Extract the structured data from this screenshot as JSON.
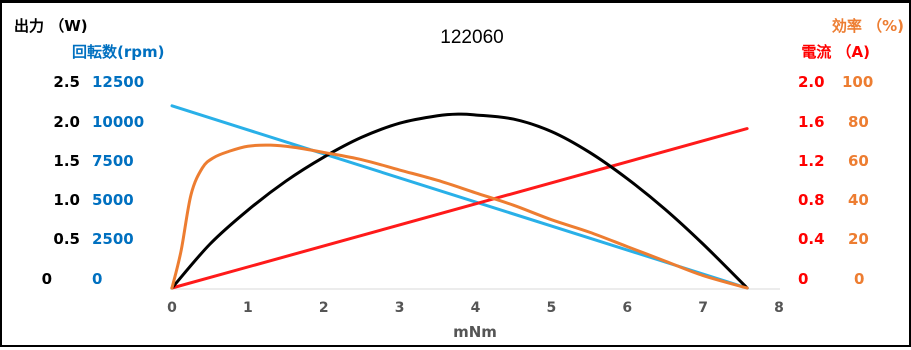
{
  "chart_data": {
    "type": "line",
    "title": "122060",
    "xlabel": "mNm",
    "x_ticks": [
      "0",
      "1",
      "2",
      "3",
      "4",
      "5",
      "6",
      "7",
      "8"
    ],
    "xlim": [
      0,
      8
    ],
    "axes": {
      "power": {
        "label": "出力 （W)",
        "ticks": [
          "0",
          "0.5",
          "1.0",
          "1.5",
          "2.0",
          "2.5"
        ],
        "range": [
          0,
          2.5
        ],
        "color": "#000000"
      },
      "speed": {
        "label": "回転数(rpm)",
        "ticks": [
          "0",
          "2500",
          "5000",
          "7500",
          "10000",
          "12500"
        ],
        "range": [
          0,
          12500
        ],
        "color": "#0070c0"
      },
      "current": {
        "label": "電流 （A)",
        "ticks": [
          "0",
          "0.4",
          "0.8",
          "1.2",
          "1.6",
          "2.0"
        ],
        "range": [
          0,
          2.0
        ],
        "color": "#ff0000"
      },
      "efficiency": {
        "label": "効率 （%)",
        "ticks": [
          "0",
          "20",
          "40",
          "60",
          "80",
          "100"
        ],
        "range": [
          0,
          100
        ],
        "color": "#ed7d31"
      }
    },
    "series": [
      {
        "key": "speed",
        "axis": "speed",
        "color": "#29b0e8",
        "x": [
          0,
          7.58
        ],
        "y": [
          11000,
          0
        ]
      },
      {
        "key": "current",
        "axis": "current",
        "color": "#ff1a1a",
        "x": [
          0,
          7.58
        ],
        "y": [
          0,
          1.54
        ]
      },
      {
        "key": "power",
        "axis": "power",
        "color": "#000000",
        "x": [
          0,
          0.5,
          1,
          1.5,
          2,
          2.5,
          3,
          3.5,
          3.79,
          4,
          4.5,
          5,
          5.5,
          6,
          6.5,
          7,
          7.58
        ],
        "y": [
          0,
          0.53,
          0.94,
          1.29,
          1.58,
          1.82,
          1.99,
          2.08,
          2.1,
          2.09,
          2.04,
          1.89,
          1.64,
          1.32,
          0.95,
          0.53,
          0
        ]
      },
      {
        "key": "efficiency",
        "axis": "efficiency",
        "color": "#ed7d31",
        "x": [
          0,
          0.12,
          0.25,
          0.4,
          0.55,
          0.75,
          1.0,
          1.3,
          1.6,
          2.0,
          2.5,
          3.0,
          3.5,
          4.0,
          4.5,
          5.0,
          5.5,
          6.0,
          6.5,
          7.0,
          7.58
        ],
        "y": [
          0,
          18,
          45,
          58,
          63,
          66,
          68.5,
          69,
          68,
          65.5,
          62,
          57,
          52,
          46,
          40,
          33,
          27,
          20,
          13,
          6,
          0
        ]
      }
    ]
  }
}
